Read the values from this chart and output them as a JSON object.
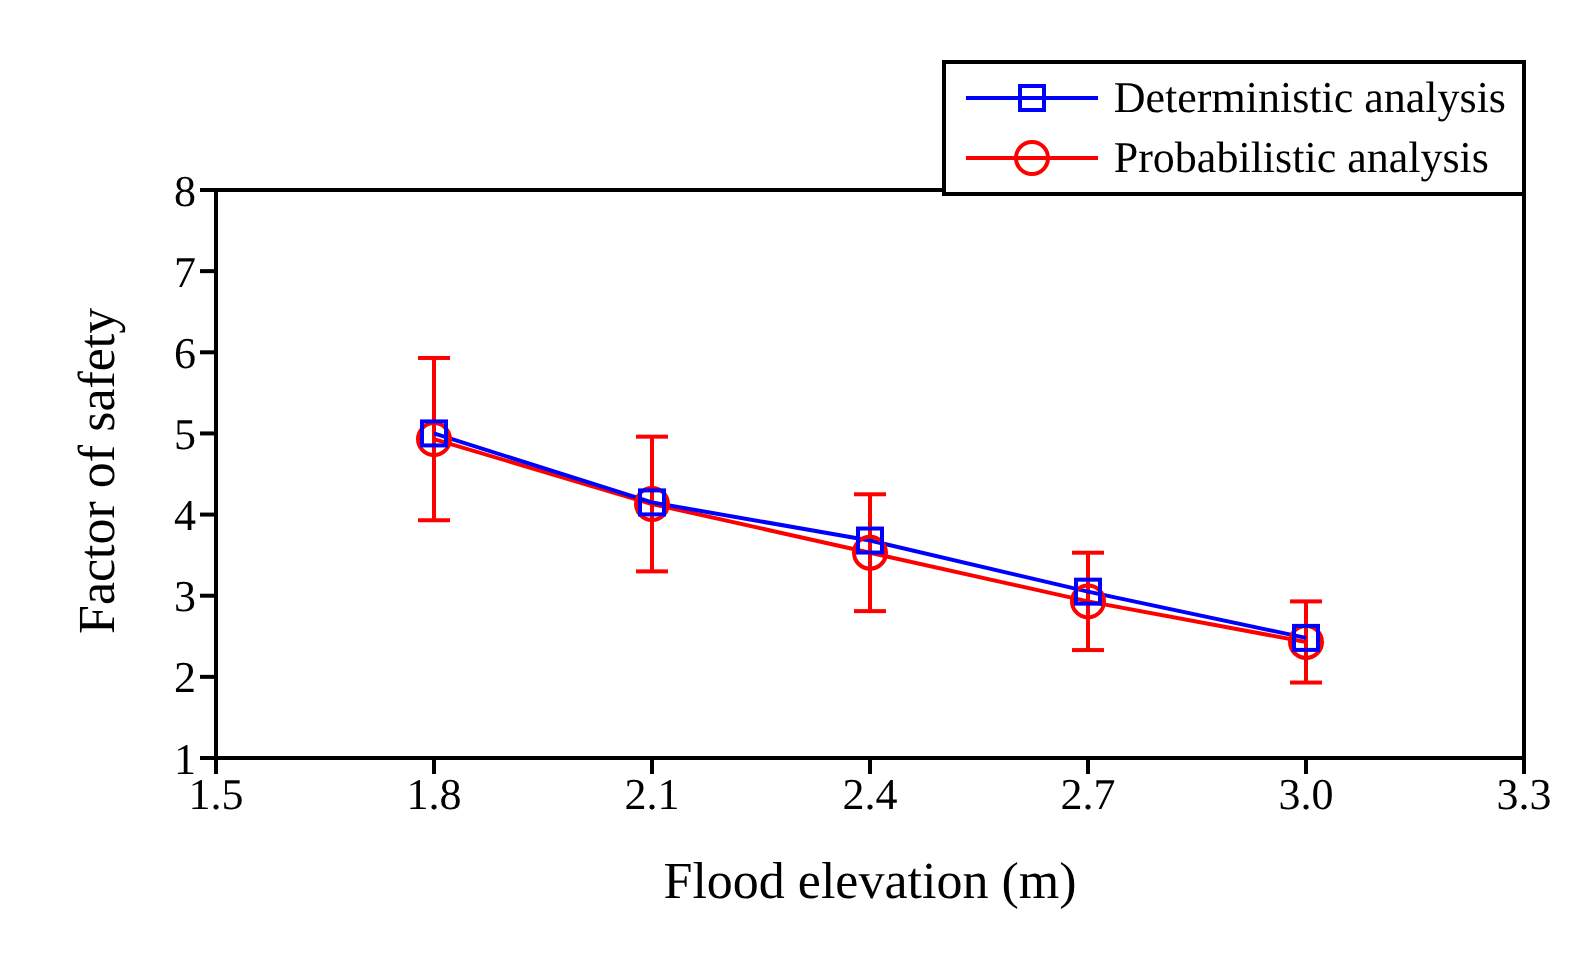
{
  "chart_data": {
    "type": "line",
    "xlabel": "Flood elevation (m)",
    "ylabel": "Factor of safety",
    "x": [
      1.8,
      2.1,
      2.4,
      2.7,
      3.0
    ],
    "xlim": [
      1.5,
      3.3
    ],
    "xticks": [
      {
        "value": 1.5,
        "label": "1.5"
      },
      {
        "value": 1.8,
        "label": "1.8"
      },
      {
        "value": 2.1,
        "label": "2.1"
      },
      {
        "value": 2.4,
        "label": "2.4"
      },
      {
        "value": 2.7,
        "label": "2.7"
      },
      {
        "value": 3.0,
        "label": "3.0"
      },
      {
        "value": 3.3,
        "label": "3.3"
      }
    ],
    "ylim": [
      1,
      8
    ],
    "yticks": [
      1,
      2,
      3,
      4,
      5,
      6,
      7,
      8
    ],
    "series": [
      {
        "name": "Deterministic analysis",
        "color": "#0000ff",
        "marker": "square",
        "values": [
          5.0,
          4.15,
          3.68,
          3.05,
          2.48
        ]
      },
      {
        "name": "Probabilistic analysis",
        "color": "#ff0000",
        "marker": "circle",
        "values": [
          4.93,
          4.13,
          3.53,
          2.93,
          2.43
        ],
        "errors": [
          1.0,
          0.83,
          0.72,
          0.6,
          0.5
        ]
      }
    ],
    "legend": "top right",
    "grid": false
  }
}
